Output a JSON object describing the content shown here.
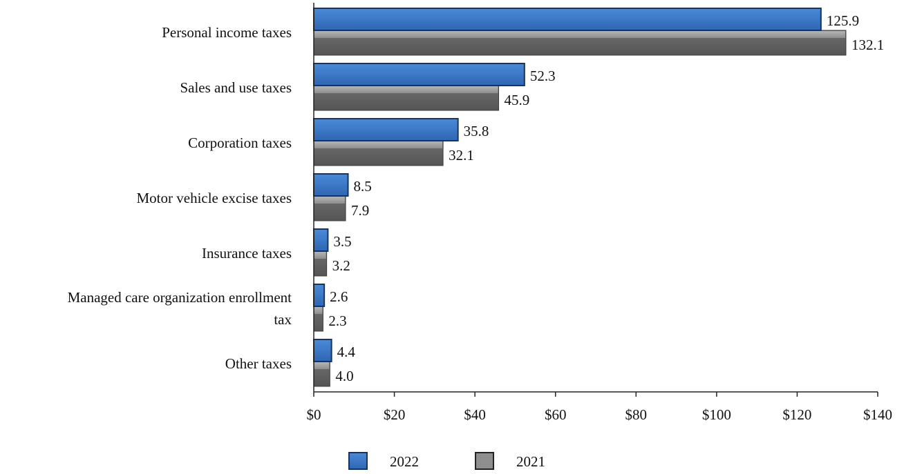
{
  "chart_data": {
    "type": "bar",
    "orientation": "horizontal",
    "categories": [
      [
        "Personal income taxes"
      ],
      [
        "Sales and use taxes"
      ],
      [
        "Corporation taxes"
      ],
      [
        "Motor vehicle excise taxes"
      ],
      [
        "Insurance taxes"
      ],
      [
        "Managed care organization enrollment",
        "tax"
      ],
      [
        "Other taxes"
      ]
    ],
    "series": [
      {
        "name": "2022",
        "values": [
          125.9,
          52.3,
          35.8,
          8.5,
          3.5,
          2.6,
          4.4
        ],
        "labels": [
          "125.9",
          "52.3",
          "35.8",
          "8.5",
          "3.5",
          "2.6",
          "4.4"
        ],
        "color": "#3a78c9"
      },
      {
        "name": "2021",
        "values": [
          132.1,
          45.9,
          32.1,
          7.9,
          3.2,
          2.3,
          4.0
        ],
        "labels": [
          "132.1",
          "45.9",
          "32.1",
          "7.9",
          "3.2",
          "2.3",
          "4.0"
        ],
        "color": "#7a7a7a"
      }
    ],
    "xlim": [
      0,
      140
    ],
    "ticks": [
      0,
      20,
      40,
      60,
      80,
      100,
      120,
      140
    ],
    "tick_labels": [
      "$0",
      "$20",
      "$40",
      "$60",
      "$80",
      "$100",
      "$120",
      "$140"
    ],
    "grid": false,
    "legend_position": "bottom-center",
    "title": "",
    "xlabel": "",
    "ylabel": ""
  }
}
